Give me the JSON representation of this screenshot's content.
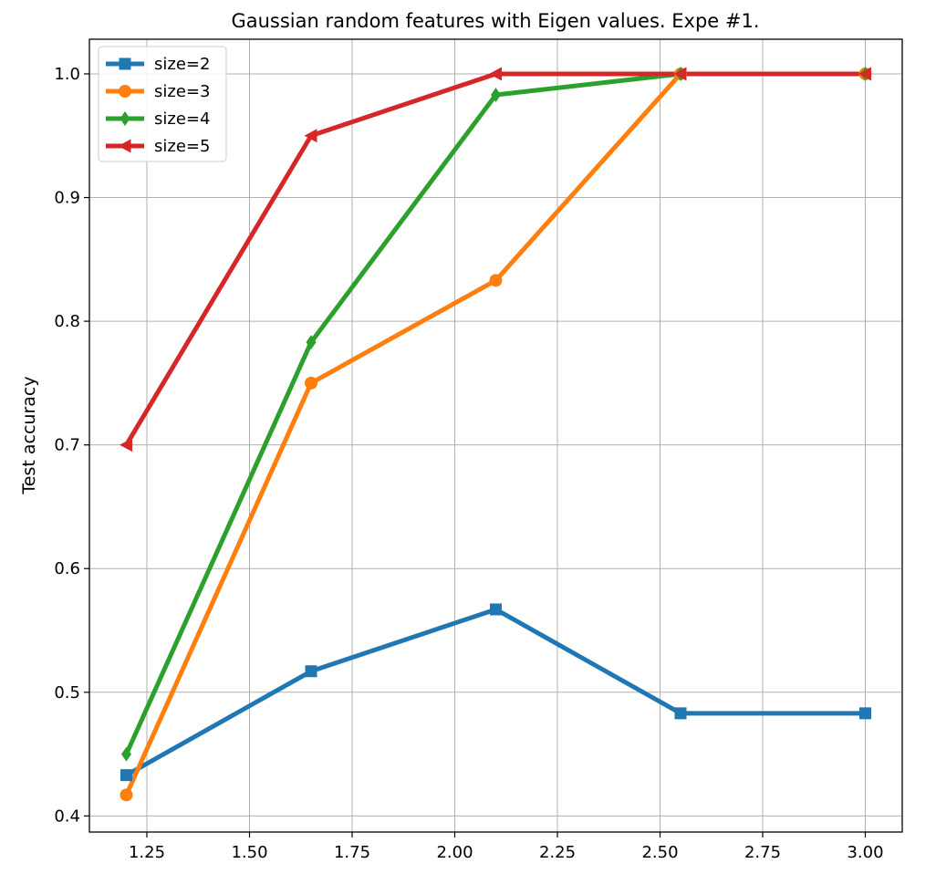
{
  "chart_data": {
    "type": "line",
    "title": "Gaussian random features with Eigen values. Expe #1.",
    "xlabel": "",
    "ylabel": "Test accuracy",
    "x": [
      1.2,
      1.65,
      2.1,
      2.55,
      3.0
    ],
    "xlim": [
      1.11,
      3.09
    ],
    "ylim": [
      0.387,
      1.028
    ],
    "xticks": [
      1.25,
      1.5,
      1.75,
      2.0,
      2.25,
      2.5,
      2.75,
      3.0
    ],
    "xtick_labels": [
      "1.25",
      "1.50",
      "1.75",
      "2.00",
      "2.25",
      "2.50",
      "2.75",
      "3.00"
    ],
    "yticks": [
      0.4,
      0.5,
      0.6,
      0.7,
      0.8,
      0.9,
      1.0
    ],
    "ytick_labels": [
      "0.4",
      "0.5",
      "0.6",
      "0.7",
      "0.8",
      "0.9",
      "1.0"
    ],
    "grid": true,
    "legend_position": "upper-left",
    "series": [
      {
        "name": "size=2",
        "color": "#1f77b4",
        "marker": "square",
        "values": [
          0.433,
          0.517,
          0.567,
          0.483,
          0.483
        ]
      },
      {
        "name": "size=3",
        "color": "#ff7f0e",
        "marker": "circle",
        "values": [
          0.417,
          0.75,
          0.833,
          1.0,
          1.0
        ]
      },
      {
        "name": "size=4",
        "color": "#2ca02c",
        "marker": "diamond",
        "values": [
          0.45,
          0.783,
          0.983,
          1.0,
          1.0
        ]
      },
      {
        "name": "size=5",
        "color": "#d62728",
        "marker": "triangle-left",
        "values": [
          0.7,
          0.95,
          1.0,
          1.0,
          1.0
        ]
      }
    ]
  }
}
